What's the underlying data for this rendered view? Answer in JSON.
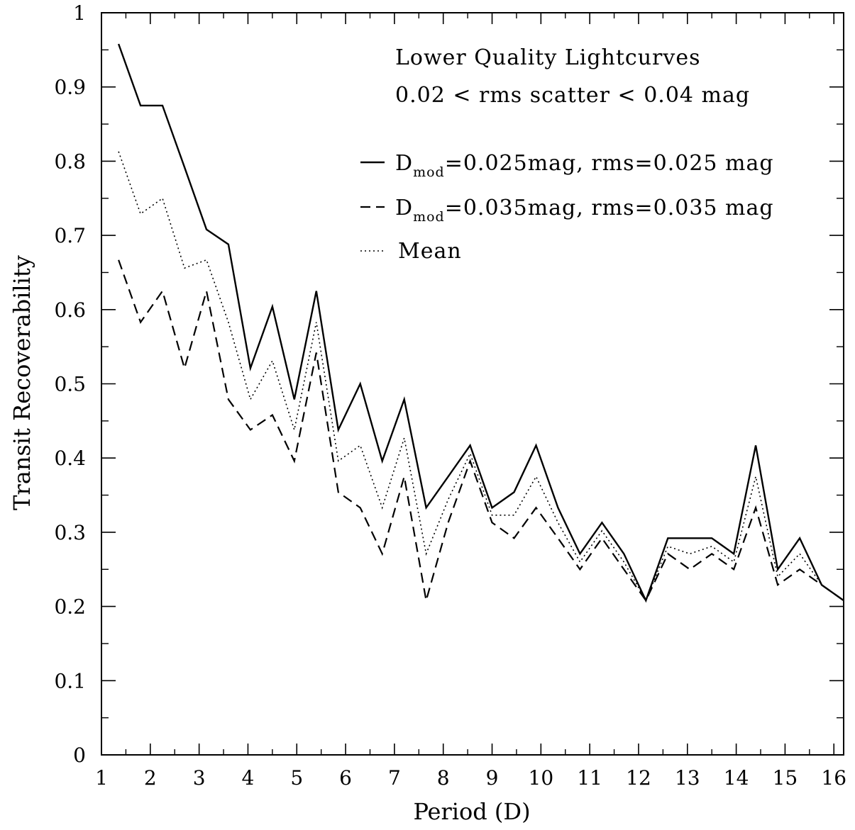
{
  "chart_data": {
    "type": "line",
    "xlabel": "Period (D)",
    "ylabel": "Transit Recoverability",
    "xlim": [
      1,
      16.2
    ],
    "ylim": [
      0,
      1
    ],
    "xticks": [
      1,
      2,
      3,
      4,
      5,
      6,
      7,
      8,
      9,
      10,
      11,
      12,
      13,
      14,
      15,
      16
    ],
    "xtick_labels": [
      "1",
      "2",
      "3",
      "4",
      "5",
      "6",
      "7",
      "8",
      "9",
      "10",
      "11",
      "12",
      "13",
      "14",
      "15",
      "16"
    ],
    "yticks": [
      0,
      0.1,
      0.2,
      0.3,
      0.4,
      0.5,
      0.6,
      0.7,
      0.8,
      0.9,
      1
    ],
    "ytick_labels": [
      "0",
      "0.1",
      "0.2",
      "0.3",
      "0.4",
      "0.5",
      "0.6",
      "0.7",
      "0.8",
      "0.9",
      "1"
    ],
    "annotations": [
      "Lower Quality Lightcurves",
      "0.02 < rms scatter < 0.04 mag"
    ],
    "legend_position": "top-right",
    "grid": false,
    "x": [
      1.35,
      1.8,
      2.25,
      2.7,
      3.15,
      3.6,
      4.05,
      4.5,
      4.95,
      5.4,
      5.85,
      6.3,
      6.75,
      7.2,
      7.65,
      8.1,
      8.55,
      9.0,
      9.45,
      9.9,
      10.35,
      10.8,
      11.25,
      11.7,
      12.15,
      12.6,
      13.05,
      13.5,
      13.95,
      14.4,
      14.85,
      15.3,
      15.75,
      16.2
    ],
    "series": [
      {
        "key": "solid",
        "style": "solid",
        "legend": {
          "main": "D",
          "sub": "mod",
          "rest": "=0.025mag, rms=0.025 mag"
        },
        "values": [
          0.958,
          0.875,
          0.875,
          0.792,
          0.708,
          0.688,
          0.521,
          0.604,
          0.479,
          0.625,
          0.438,
          0.5,
          0.396,
          0.479,
          0.333,
          0.375,
          0.417,
          0.333,
          0.354,
          0.417,
          0.333,
          0.271,
          0.313,
          0.271,
          0.208,
          0.292,
          0.292,
          0.292,
          0.271,
          0.417,
          0.25,
          0.292,
          0.229,
          0.208
        ]
      },
      {
        "key": "dashed",
        "style": "dashed",
        "legend": {
          "main": "D",
          "sub": "mod",
          "rest": "=0.035mag, rms=0.035 mag"
        },
        "values": [
          0.667,
          0.583,
          0.625,
          0.521,
          0.625,
          0.479,
          0.438,
          0.458,
          0.396,
          0.542,
          0.354,
          0.333,
          0.271,
          0.375,
          0.208,
          0.313,
          0.396,
          0.313,
          0.292,
          0.333,
          0.292,
          0.25,
          0.292,
          0.25,
          0.208,
          0.271,
          0.25,
          0.271,
          0.25,
          0.333,
          0.229,
          0.25,
          0.229,
          0.208
        ]
      },
      {
        "key": "dotted",
        "style": "dotted",
        "legend": {
          "main": "Mean",
          "sub": "",
          "rest": ""
        },
        "values": [
          0.813,
          0.729,
          0.75,
          0.656,
          0.667,
          0.583,
          0.479,
          0.531,
          0.438,
          0.583,
          0.396,
          0.417,
          0.333,
          0.427,
          0.271,
          0.344,
          0.406,
          0.323,
          0.323,
          0.375,
          0.313,
          0.26,
          0.302,
          0.26,
          0.208,
          0.281,
          0.271,
          0.281,
          0.26,
          0.375,
          0.24,
          0.271,
          0.229,
          0.208
        ]
      }
    ]
  }
}
